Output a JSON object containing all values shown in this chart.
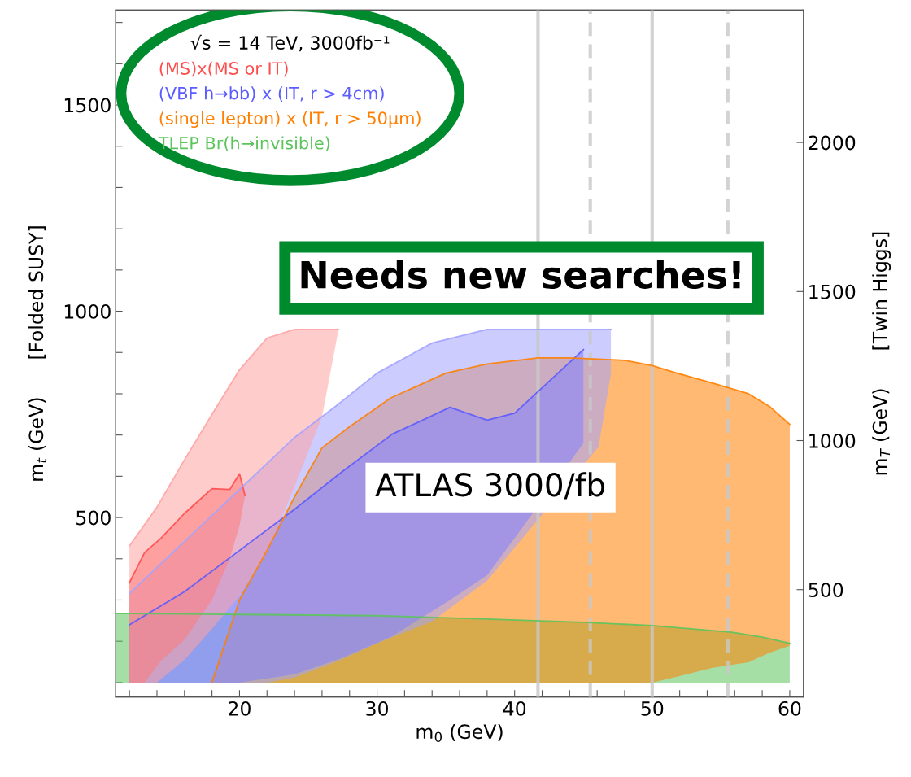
{
  "chart_data": {
    "type": "line",
    "xlabel": "m$_{0}$ (GeV)",
    "ylabel": "m$_{t}$ (GeV)      [Folded SUSY]",
    "y2label": "m$_{T}$ (GeV)      [Twin Higgs]",
    "legend_title": "√s = 14 TeV, 3000fb⁻¹",
    "legend": "top left",
    "xlim": [
      11,
      61
    ],
    "ylim": [
      65,
      1730
    ],
    "y2lim": [
      140,
      2444
    ],
    "xticks": [
      {
        "value": 12,
        "label": null
      },
      {
        "value": 14,
        "label": null
      },
      {
        "value": 16,
        "label": null
      },
      {
        "value": 18,
        "label": null
      },
      20,
      {
        "value": 22,
        "label": null
      },
      {
        "value": 24,
        "label": null
      },
      {
        "value": 26,
        "label": null
      },
      {
        "value": 28,
        "label": null
      },
      30,
      {
        "value": 32,
        "label": null
      },
      {
        "value": 34,
        "label": null
      },
      {
        "value": 36,
        "label": null
      },
      {
        "value": 38,
        "label": null
      },
      40,
      {
        "value": 42,
        "label": null
      },
      {
        "value": 44,
        "label": null
      },
      {
        "value": 46,
        "label": null
      },
      {
        "value": 48,
        "label": null
      },
      50,
      {
        "value": 52,
        "label": null
      },
      {
        "value": 54,
        "label": null
      },
      {
        "value": 56,
        "label": null
      },
      {
        "value": 58,
        "label": null
      },
      60
    ],
    "yticks": [
      {
        "value": 100,
        "label": null
      },
      {
        "value": 200,
        "label": null
      },
      {
        "value": 300,
        "label": null
      },
      {
        "value": 400,
        "label": null
      },
      500,
      {
        "value": 600,
        "label": null
      },
      {
        "value": 700,
        "label": null
      },
      {
        "value": 800,
        "label": null
      },
      {
        "value": 900,
        "label": null
      },
      1000,
      {
        "value": 1100,
        "label": null
      },
      {
        "value": 1200,
        "label": null
      },
      {
        "value": 1300,
        "label": null
      },
      {
        "value": 1400,
        "label": null
      },
      1500,
      {
        "value": 1600,
        "label": null
      },
      {
        "value": 1700,
        "label": null
      }
    ],
    "y2ticks": [
      500,
      1000,
      1500,
      2000
    ],
    "series": [
      {
        "color": "#ffa3a3",
        "x": [
          12,
          14,
          16,
          18,
          20,
          22,
          24,
          26,
          27.2
        ],
        "lower": [
          100,
          100,
          155,
          230,
          310,
          415,
          575,
          744,
          956
        ],
        "upper": [
          431,
          525,
          640,
          750,
          858,
          935,
          956,
          956,
          956
        ],
        "values": [
          431,
          525,
          640,
          750,
          858,
          935,
          956,
          956,
          956
        ]
      },
      {
        "name": "(MS)x(MS or IT)",
        "color": "#ff4d4d",
        "x": [
          12,
          13.1,
          14.3,
          16,
          18,
          19.3,
          20,
          20.4
        ],
        "lower": [
          100,
          100,
          153,
          204,
          300,
          401,
          480,
          553
        ],
        "upper": [
          342,
          415,
          450,
          510,
          570,
          568,
          606,
          553
        ],
        "values": [
          342,
          415,
          450,
          510,
          570,
          568,
          606,
          553
        ]
      },
      {
        "color": "#a3a3ff",
        "x": [
          12,
          14,
          18,
          22,
          24,
          27,
          30,
          34,
          38,
          42,
          46.1,
          47
        ],
        "lower": [
          100,
          100,
          100,
          100,
          112,
          150,
          195,
          248,
          347,
          507,
          671,
          848
        ],
        "upper": [
          316,
          379,
          505,
          631,
          694,
          770,
          850,
          923,
          956,
          956,
          956,
          956
        ],
        "values": [
          316,
          379,
          505,
          631,
          694,
          770,
          850,
          923,
          956,
          956,
          956,
          956
        ]
      },
      {
        "name": "(VBF h→bb) x (IT, r > 4cm)",
        "color": "#5b5bff",
        "x": [
          12,
          16,
          20,
          24,
          27.5,
          31.1,
          35.3,
          38,
          40,
          45
        ],
        "lower": [
          100,
          100,
          100,
          120,
          160,
          212,
          300,
          360,
          450,
          680
        ],
        "upper": [
          240,
          320,
          420,
          520,
          612,
          702,
          767,
          736,
          753,
          907
        ],
        "values": [
          240,
          320,
          420,
          520,
          612,
          702,
          767,
          736,
          753,
          907
        ]
      },
      {
        "name": "(single lepton) x (IT, r > 50μm)",
        "color": "#ff7f00",
        "x": [
          18,
          20,
          22,
          24,
          26,
          28,
          31,
          35,
          38,
          41.7,
          44,
          48,
          50,
          51.8,
          54.4,
          57,
          58.5,
          60
        ],
        "lower": [
          100,
          100,
          100,
          100,
          100,
          100,
          100,
          100,
          100,
          100,
          100,
          100,
          100,
          114,
          136,
          149,
          172,
          189
        ],
        "upper": [
          100,
          300,
          420,
          550,
          669,
          720,
          790,
          850,
          872,
          887,
          887,
          881,
          868,
          850,
          826,
          800,
          770,
          726
        ],
        "values": [
          100,
          300,
          420,
          550,
          669,
          720,
          790,
          850,
          872,
          887,
          887,
          881,
          868,
          850,
          826,
          800,
          770,
          726
        ]
      },
      {
        "name": "TLEP Br(h→invisible)",
        "color": "#5cc45c",
        "x": [
          11,
          12,
          20,
          30,
          38,
          45,
          50,
          55.8,
          58,
          60
        ],
        "lower": [
          100,
          100,
          100,
          100,
          100,
          100,
          100,
          100,
          100,
          100
        ],
        "upper": [
          267,
          267,
          265,
          262,
          254,
          246,
          238,
          222,
          210,
          195
        ],
        "values": [
          267,
          267,
          265,
          262,
          254,
          246,
          238,
          222,
          210,
          195
        ]
      }
    ],
    "ref_lines": [
      {
        "axis": "x",
        "value": 41.7,
        "color": "#c8c8c8",
        "line_style": "solid"
      },
      {
        "axis": "x",
        "value": 45.5,
        "color": "#c8c8c8",
        "line_style": "dashed"
      },
      {
        "axis": "x",
        "value": 50,
        "color": "#c8c8c8",
        "line_style": "solid"
      },
      {
        "axis": "x",
        "value": 55.5,
        "color": "#c8c8c8",
        "line_style": "dashed"
      }
    ],
    "annotations": [
      "Needs new searches!",
      "ATLAS 3000/fb"
    ]
  }
}
